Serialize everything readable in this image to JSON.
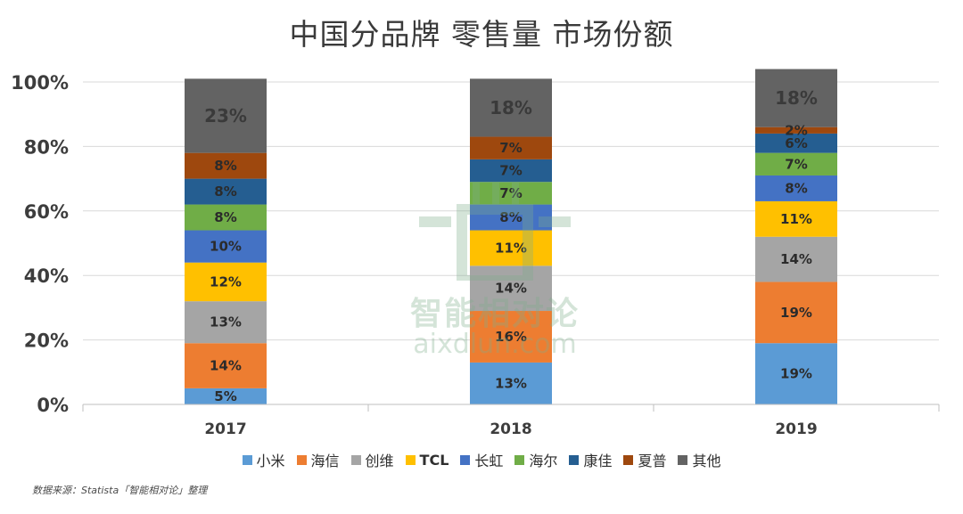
{
  "chart_data": {
    "type": "bar",
    "stacked": true,
    "title": "中国分品牌 零售量 市场份额",
    "categories": [
      "2017",
      "2018",
      "2019"
    ],
    "ylim": [
      0,
      100
    ],
    "ytick_labels": [
      "0%",
      "20%",
      "40%",
      "60%",
      "80%",
      "100%"
    ],
    "grid": true,
    "legend_position": "bottom",
    "series": [
      {
        "name": "小米",
        "color": "#5b9bd5",
        "values": [
          5,
          13,
          19
        ],
        "labels": [
          "5%",
          "13%",
          "19%"
        ]
      },
      {
        "name": "海信",
        "color": "#ed7d31",
        "values": [
          14,
          16,
          19
        ],
        "labels": [
          "14%",
          "16%",
          "19%"
        ]
      },
      {
        "name": "创维",
        "color": "#a5a5a5",
        "values": [
          13,
          14,
          14
        ],
        "labels": [
          "13%",
          "14%",
          "14%"
        ]
      },
      {
        "name": "TCL",
        "color": "#ffc000",
        "values": [
          12,
          11,
          11
        ],
        "labels": [
          "12%",
          "11%",
          "11%"
        ]
      },
      {
        "name": "长虹",
        "color": "#4472c4",
        "values": [
          10,
          8,
          8
        ],
        "labels": [
          "10%",
          "8%",
          "8%"
        ]
      },
      {
        "name": "海尔",
        "color": "#70ad47",
        "values": [
          8,
          7,
          7
        ],
        "labels": [
          "8%",
          "7%",
          "7%"
        ]
      },
      {
        "name": "康佳",
        "color": "#255e91",
        "values": [
          8,
          7,
          6
        ],
        "labels": [
          "8%",
          "7%",
          "6%"
        ]
      },
      {
        "name": "夏普",
        "color": "#9e480e",
        "values": [
          8,
          7,
          2
        ],
        "labels": [
          "8%",
          "7%",
          "2%"
        ]
      },
      {
        "name": "其他",
        "color": "#636363",
        "values": [
          23,
          18,
          18
        ],
        "labels": [
          "23%",
          "18%",
          "18%"
        ]
      }
    ]
  },
  "source_note": "数据来源：Statista「智能相对论」整理",
  "watermark": {
    "text": "智能相对论",
    "url": "aixdlun.com"
  }
}
